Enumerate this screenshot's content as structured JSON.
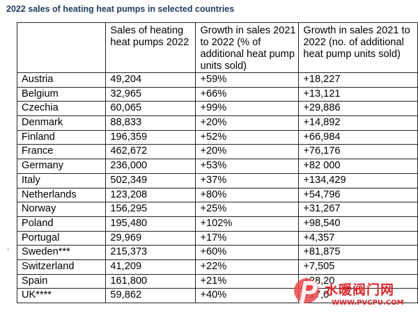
{
  "title": "2022 sales of heating heat pumps in selected countries",
  "table": {
    "headers": [
      "",
      "Sales of heating heat pumps 2022",
      "Growth in sales 2021 to 2022 (% of additional heat pump units sold)",
      "Growth in sales 2021 to 2022 (no. of additional heat pump units sold)"
    ],
    "rows": [
      {
        "country": "Austria",
        "sales": "49,204",
        "growth_pct": "+59%",
        "growth_units": "+18,227"
      },
      {
        "country": "Belgium",
        "sales": "32,965",
        "growth_pct": "+66%",
        "growth_units": "+13,121"
      },
      {
        "country": "Czechia",
        "sales": "60,065",
        "growth_pct": "+99%",
        "growth_units": "+29,886"
      },
      {
        "country": "Denmark",
        "sales": "88,833",
        "growth_pct": "+20%",
        "growth_units": "+14,892"
      },
      {
        "country": "Finland",
        "sales": "196,359",
        "growth_pct": "+52%",
        "growth_units": "+66,984"
      },
      {
        "country": "France",
        "sales": "462,672",
        "growth_pct": "+20%",
        "growth_units": "+76,176"
      },
      {
        "country": "Germany",
        "sales": "236,000",
        "growth_pct": "+53%",
        "growth_units": "+82 000"
      },
      {
        "country": "Italy",
        "sales": "502,349",
        "growth_pct": "+37%",
        "growth_units": "+134,429"
      },
      {
        "country": "Netherlands",
        "sales": "123,208",
        "growth_pct": "+80%",
        "growth_units": "+54,796"
      },
      {
        "country": "Norway",
        "sales": "156,295",
        "growth_pct": "+25%",
        "growth_units": "+31,267"
      },
      {
        "country": "Poland",
        "sales": "195,480",
        "growth_pct": "+102%",
        "growth_units": "+98,540"
      },
      {
        "country": "Portugal",
        "sales": "29,969",
        "growth_pct": "+17%",
        "growth_units": "+4,357"
      },
      {
        "country": "Sweden***",
        "sales": "215,373",
        "growth_pct": "+60%",
        "growth_units": "+81,875"
      },
      {
        "country": "Switzerland",
        "sales": "41,209",
        "growth_pct": "+22%",
        "growth_units": "+7,505"
      },
      {
        "country": "Spain",
        "sales": "161,800",
        "growth_pct": "+21%",
        "growth_units": "+28,20"
      },
      {
        "country": "UK****",
        "sales": "59,862",
        "growth_pct": "+40%",
        "growth_units": "+17,0"
      }
    ]
  },
  "watermark": {
    "text": "水暖阀门网",
    "url": "WWW.PVCPU.COM",
    "color": "#d9272d"
  }
}
